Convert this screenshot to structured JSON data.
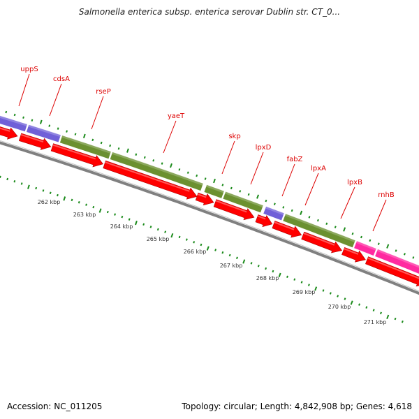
{
  "title": "Salmonella enterica subsp. enterica serovar Dublin str. CT_0...",
  "footer": {
    "accession": "Accession: NC_011205",
    "summary": "Topology: circular; Length: 4,842,908 bp; Genes: 4,618"
  },
  "colors": {
    "gene_label": "#dd0000",
    "label_line": "#dd0000",
    "reverse_arrow": "#ff0000",
    "backbone": "#808080",
    "tick": "#1a8a1a",
    "ruler_text": "#333333",
    "cog_purple": "#7060d8",
    "cog_olive": "#6b9030",
    "cog_magenta": "#ff2aa0"
  },
  "genes": [
    {
      "name": "uppS"
    },
    {
      "name": "cdsA"
    },
    {
      "name": "rseP"
    },
    {
      "name": "yaeT"
    },
    {
      "name": "skp"
    },
    {
      "name": "lpxD"
    },
    {
      "name": "fabZ"
    },
    {
      "name": "lpxA"
    },
    {
      "name": "lpxB"
    },
    {
      "name": "rnhB"
    }
  ],
  "scale": {
    "labels": [
      "262 kbp",
      "263 kbp",
      "264 kbp",
      "265 kbp",
      "266 kbp",
      "267 kbp",
      "268 kbp",
      "269 kbp",
      "270 kbp",
      "271 kbp"
    ]
  }
}
